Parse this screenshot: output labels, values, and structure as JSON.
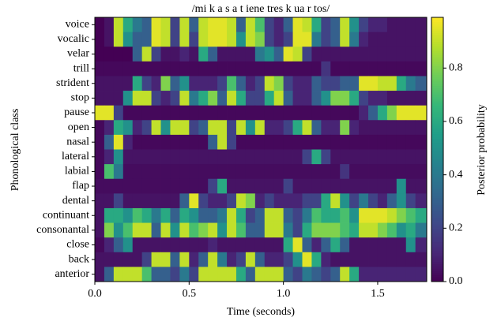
{
  "chart_data": {
    "type": "heatmap",
    "title": "/mi k a s a t iene tres k ua r tos/",
    "x_label": "Time (seconds)",
    "y_label": "Phonological class",
    "colorbar_label": "Posterior probability",
    "colormap": "viridis",
    "y_categories": [
      "voice",
      "vocalic",
      "velar",
      "trill",
      "strident",
      "stop",
      "pause",
      "open",
      "nasal",
      "lateral",
      "labial",
      "flap",
      "dental",
      "continuant",
      "consonantal",
      "close",
      "back",
      "anterior"
    ],
    "x_bins": [
      0,
      0.05,
      0.1,
      0.15,
      0.2,
      0.25,
      0.3,
      0.35,
      0.4,
      0.45,
      0.5,
      0.55,
      0.6,
      0.65,
      0.7,
      0.75,
      0.8,
      0.85,
      0.9,
      0.95,
      1.0,
      1.05,
      1.1,
      1.15,
      1.2,
      1.25,
      1.3,
      1.35,
      1.4,
      1.45,
      1.5,
      1.55,
      1.6,
      1.65,
      1.7,
      1.76
    ],
    "xlim": [
      0,
      1.76
    ],
    "xticks": [
      {
        "value": 0,
        "label": "0.0"
      },
      0.5,
      {
        "value": 1,
        "label": "1.0"
      },
      1.5
    ],
    "zlim": [
      0,
      0.99
    ],
    "zticks": [
      {
        "value": 0,
        "label": "0.0"
      },
      0.2,
      0.4,
      0.6,
      0.8
    ],
    "values": [
      [
        0,
        0.05,
        0.9,
        0.6,
        0.4,
        0.3,
        0.95,
        0.9,
        0.2,
        0.9,
        0.3,
        0.9,
        0.95,
        0.95,
        0.9,
        0.3,
        0.9,
        0.7,
        0.2,
        0.1,
        0.3,
        0.95,
        0.9,
        0.6,
        0.2,
        0.3,
        0.9,
        0.5,
        0.2,
        0.1,
        0.1,
        0.05,
        0.05,
        0.05,
        0.05
      ],
      [
        0,
        0.05,
        0.9,
        0.5,
        0.3,
        0.3,
        0.95,
        0.9,
        0.2,
        0.9,
        0.2,
        0.9,
        0.95,
        0.95,
        0.9,
        0.5,
        0.9,
        0.8,
        0.2,
        0.1,
        0.2,
        0.95,
        0.95,
        0.4,
        0.2,
        0.3,
        0.9,
        0.4,
        0.1,
        0.05,
        0.05,
        0.05,
        0.05,
        0.05,
        0.05
      ],
      [
        0,
        0,
        0,
        0,
        0.3,
        0.9,
        0.2,
        0.05,
        0.05,
        0.1,
        0.05,
        0.6,
        0.3,
        0.05,
        0.05,
        0.05,
        0.05,
        0.4,
        0.5,
        0.3,
        0.95,
        0.9,
        0.2,
        0.05,
        0.05,
        0.05,
        0.05,
        0.05,
        0.05,
        0.05,
        0.05,
        0.05,
        0.05,
        0.05,
        0.05
      ],
      [
        0.02,
        0.02,
        0.02,
        0.02,
        0.02,
        0.02,
        0.02,
        0.02,
        0.02,
        0.02,
        0.02,
        0.02,
        0.02,
        0.02,
        0.02,
        0.02,
        0.02,
        0.02,
        0.02,
        0.02,
        0.02,
        0.02,
        0.02,
        0.02,
        0.15,
        0.02,
        0.02,
        0.02,
        0.02,
        0.02,
        0.02,
        0.02,
        0.02,
        0.02,
        0.02
      ],
      [
        0.05,
        0.05,
        0.05,
        0.05,
        0.6,
        0.2,
        0.1,
        0.8,
        0.3,
        0.5,
        0.1,
        0.1,
        0.1,
        0.2,
        0.7,
        0.3,
        0.1,
        0.2,
        0.9,
        0.8,
        0.2,
        0.1,
        0.1,
        0.3,
        0.2,
        0.2,
        0.3,
        0.3,
        0.95,
        0.95,
        0.9,
        0.9,
        0.6,
        0.4,
        0.3
      ],
      [
        0.05,
        0.05,
        0.05,
        0.5,
        0.9,
        0.9,
        0.2,
        0.1,
        0.2,
        0.9,
        0.4,
        0.6,
        0.8,
        0.3,
        0.9,
        0.6,
        0.2,
        0.2,
        0.6,
        0.9,
        0.3,
        0.1,
        0.1,
        0.3,
        0.5,
        0.8,
        0.8,
        0.6,
        0.2,
        0.1,
        0.1,
        0.05,
        0.05,
        0.05,
        0.05
      ],
      [
        0.95,
        0.95,
        0.2,
        0.02,
        0.02,
        0.02,
        0.02,
        0.02,
        0.02,
        0.02,
        0.02,
        0.02,
        0.02,
        0.02,
        0.02,
        0.02,
        0.02,
        0.02,
        0.02,
        0.02,
        0.02,
        0.02,
        0.02,
        0.02,
        0.02,
        0.02,
        0.02,
        0.02,
        0.1,
        0.3,
        0.6,
        0.8,
        0.95,
        0.95,
        0.95
      ],
      [
        0.02,
        0.1,
        0.6,
        0.5,
        0.1,
        0.2,
        0.9,
        0.5,
        0.9,
        0.9,
        0.2,
        0.3,
        0.9,
        0.9,
        0.2,
        0.9,
        0.5,
        0.9,
        0.1,
        0.1,
        0.2,
        0.6,
        0.9,
        0.3,
        0.1,
        0.1,
        0.8,
        0.1,
        0.05,
        0.05,
        0.05,
        0.05,
        0.05,
        0.05,
        0.05
      ],
      [
        0.02,
        0.3,
        0.95,
        0.1,
        0.02,
        0.02,
        0.02,
        0.02,
        0.02,
        0.02,
        0.02,
        0.02,
        0.3,
        0.9,
        0.2,
        0.02,
        0.02,
        0.02,
        0.02,
        0.02,
        0.02,
        0.02,
        0.02,
        0.02,
        0.02,
        0.02,
        0.02,
        0.02,
        0.02,
        0.02,
        0.02,
        0.02,
        0.02,
        0.02,
        0.02
      ],
      [
        0.02,
        0.1,
        0.5,
        0.05,
        0.05,
        0.05,
        0.05,
        0.05,
        0.05,
        0.05,
        0.05,
        0.05,
        0.05,
        0.05,
        0.05,
        0.05,
        0.05,
        0.05,
        0.05,
        0.05,
        0.05,
        0.05,
        0.2,
        0.6,
        0.2,
        0.05,
        0.05,
        0.05,
        0.05,
        0.05,
        0.05,
        0.05,
        0.05,
        0.05,
        0.05
      ],
      [
        0.02,
        0.7,
        0.4,
        0.03,
        0.03,
        0.03,
        0.03,
        0.03,
        0.03,
        0.03,
        0.03,
        0.03,
        0.03,
        0.03,
        0.03,
        0.03,
        0.03,
        0.03,
        0.03,
        0.03,
        0.03,
        0.03,
        0.03,
        0.03,
        0.03,
        0.03,
        0.15,
        0.03,
        0.03,
        0.03,
        0.03,
        0.03,
        0.03,
        0.03,
        0.03
      ],
      [
        0.03,
        0.03,
        0.03,
        0.03,
        0.03,
        0.03,
        0.03,
        0.03,
        0.03,
        0.03,
        0.03,
        0.03,
        0.2,
        0.6,
        0.05,
        0.05,
        0.05,
        0.05,
        0.05,
        0.05,
        0.2,
        0.05,
        0.05,
        0.05,
        0.05,
        0.05,
        0.05,
        0.05,
        0.05,
        0.05,
        0.05,
        0.05,
        0.5,
        0.05,
        0.05
      ],
      [
        0.05,
        0.05,
        0.2,
        0.05,
        0.05,
        0.05,
        0.05,
        0.05,
        0.05,
        0.3,
        0.95,
        0.2,
        0.1,
        0.1,
        0.2,
        0.9,
        0.8,
        0.1,
        0.2,
        0.1,
        0.1,
        0.1,
        0.2,
        0.2,
        0.6,
        0.9,
        0.5,
        0.2,
        0.4,
        0.2,
        0.1,
        0.3,
        0.5,
        0.2,
        0.1
      ],
      [
        0.05,
        0.6,
        0.6,
        0.5,
        0.7,
        0.6,
        0.4,
        0.6,
        0.3,
        0.6,
        0.5,
        0.3,
        0.3,
        0.4,
        0.9,
        0.6,
        0.2,
        0.3,
        0.9,
        0.9,
        0.3,
        0.2,
        0.4,
        0.7,
        0.6,
        0.6,
        0.7,
        0.5,
        0.95,
        0.95,
        0.95,
        0.9,
        0.8,
        0.7,
        0.6
      ],
      [
        0.05,
        0.8,
        0.5,
        0.7,
        0.9,
        0.9,
        0.3,
        0.9,
        0.5,
        0.9,
        0.7,
        0.8,
        0.9,
        0.5,
        0.9,
        0.7,
        0.3,
        0.3,
        0.9,
        0.9,
        0.4,
        0.2,
        0.6,
        0.8,
        0.8,
        0.8,
        0.7,
        0.6,
        0.9,
        0.9,
        0.8,
        0.7,
        0.5,
        0.6,
        0.4
      ],
      [
        0.02,
        0.1,
        0.3,
        0.5,
        0.05,
        0.05,
        0.05,
        0.05,
        0.05,
        0.05,
        0.05,
        0.05,
        0.1,
        0.05,
        0.05,
        0.05,
        0.05,
        0.05,
        0.05,
        0.05,
        0.6,
        0.95,
        0.3,
        0.1,
        0.3,
        0.6,
        0.3,
        0.05,
        0.05,
        0.05,
        0.05,
        0.05,
        0.05,
        0.5,
        0.1
      ],
      [
        0.05,
        0.05,
        0.05,
        0.05,
        0.05,
        0.2,
        0.9,
        0.9,
        0.3,
        0.9,
        0.1,
        0.3,
        0.9,
        0.4,
        0.1,
        0.2,
        0.9,
        0.3,
        0.1,
        0.1,
        0.2,
        0.5,
        0.95,
        0.6,
        0.1,
        0.05,
        0.05,
        0.05,
        0.05,
        0.05,
        0.05,
        0.05,
        0.05,
        0.05,
        0.05
      ],
      [
        0.05,
        0.3,
        0.9,
        0.9,
        0.9,
        0.7,
        0.3,
        0.3,
        0.2,
        0.4,
        0.2,
        0.9,
        0.9,
        0.9,
        0.9,
        0.6,
        0.3,
        0.9,
        0.9,
        0.9,
        0.3,
        0.2,
        0.4,
        0.3,
        0.2,
        0.3,
        0.9,
        0.6,
        0.1,
        0.1,
        0.1,
        0.1,
        0.1,
        0.1,
        0.1
      ]
    ]
  }
}
